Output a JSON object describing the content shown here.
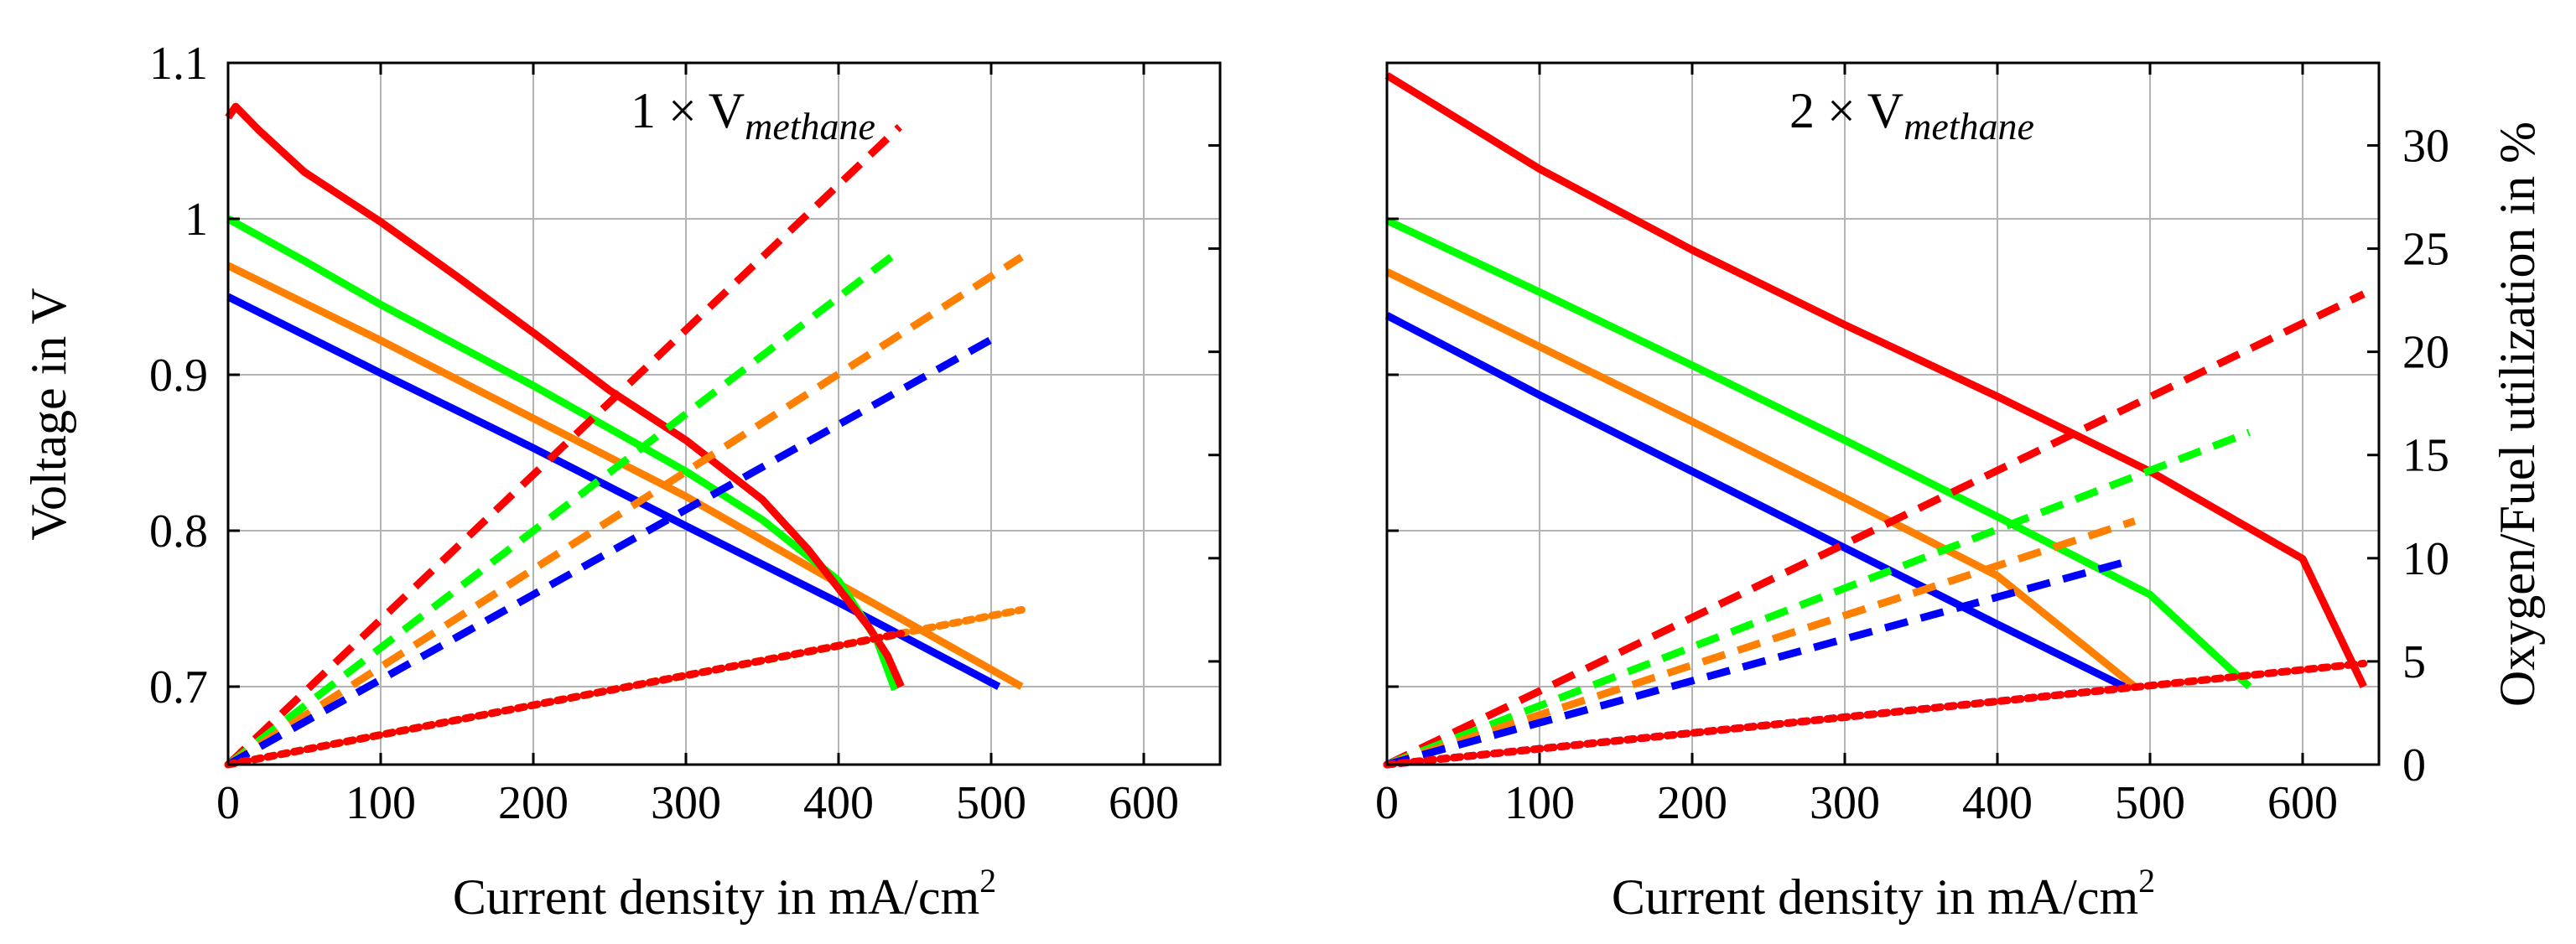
{
  "chart_data": [
    {
      "type": "line",
      "title": {
        "prefix": "1 × ",
        "v": "V",
        "sub": "methane"
      },
      "xlabel": {
        "text": "Current density in mA/cm",
        "sup": "2"
      },
      "ylabel": "Voltage in V",
      "xlim": [
        0,
        650
      ],
      "ylim": [
        0.65,
        1.1
      ],
      "xticks": [
        0,
        100,
        200,
        300,
        400,
        500,
        600
      ],
      "xtick_labels": [
        "0",
        "100",
        "200",
        "300",
        "400",
        "500",
        "600"
      ],
      "yticks": [
        0.7,
        0.8,
        0.9,
        1.0,
        1.1
      ],
      "ytick_labels": [
        "0.7",
        "0.8",
        "0.9",
        "1",
        "1.1"
      ],
      "y2lim": [
        0,
        34
      ],
      "y2ticks": [
        0,
        5,
        10,
        15,
        20,
        25,
        30
      ],
      "grid": true,
      "series": [
        {
          "name": "voltage-blue",
          "axis": "left",
          "style": "solid",
          "color": "#0000ff",
          "x": [
            0,
            100,
            200,
            300,
            400,
            505
          ],
          "y": [
            0.95,
            0.901,
            0.853,
            0.803,
            0.754,
            0.7
          ]
        },
        {
          "name": "voltage-orange",
          "axis": "left",
          "style": "solid",
          "color": "#ff8000",
          "x": [
            0,
            100,
            200,
            300,
            400,
            520
          ],
          "y": [
            0.97,
            0.922,
            0.872,
            0.822,
            0.766,
            0.7
          ]
        },
        {
          "name": "voltage-green",
          "axis": "left",
          "style": "solid",
          "color": "#00ff00",
          "x": [
            0,
            50,
            100,
            200,
            300,
            350,
            400,
            425,
            437
          ],
          "y": [
            1.0,
            0.973,
            0.945,
            0.893,
            0.838,
            0.807,
            0.768,
            0.73,
            0.698
          ]
        },
        {
          "name": "voltage-red",
          "axis": "left",
          "style": "solid",
          "color": "#ff0000",
          "x": [
            0,
            5,
            20,
            50,
            100,
            150,
            200,
            250,
            300,
            350,
            380,
            400,
            420,
            432,
            441
          ],
          "y": [
            1.065,
            1.072,
            1.057,
            1.03,
            0.998,
            0.963,
            0.927,
            0.89,
            0.858,
            0.82,
            0.788,
            0.763,
            0.738,
            0.72,
            0.7
          ]
        },
        {
          "name": "fuel-util-red",
          "axis": "right",
          "style": "dashed",
          "color": "#ff0000",
          "x": [
            0,
            440
          ],
          "y": [
            0,
            30.9
          ]
        },
        {
          "name": "fuel-util-green",
          "axis": "right",
          "style": "dashed",
          "color": "#00ff00",
          "x": [
            0,
            438
          ],
          "y": [
            0,
            24.8
          ]
        },
        {
          "name": "fuel-util-orange",
          "axis": "right",
          "style": "dashed",
          "color": "#ff8000",
          "x": [
            0,
            520
          ],
          "y": [
            0,
            24.6
          ]
        },
        {
          "name": "fuel-util-blue",
          "axis": "right",
          "style": "dashed",
          "color": "#0000ff",
          "x": [
            0,
            505
          ],
          "y": [
            0,
            20.8
          ]
        },
        {
          "name": "oxygen-util-orange",
          "axis": "right",
          "style": "dotted",
          "color": "#ff8000",
          "x": [
            0,
            520
          ],
          "y": [
            0,
            7.5
          ]
        },
        {
          "name": "oxygen-util-green",
          "axis": "right",
          "style": "dotted",
          "color": "#00ff00",
          "x": [
            0,
            438
          ],
          "y": [
            0,
            6.3
          ]
        },
        {
          "name": "oxygen-util-red",
          "axis": "right",
          "style": "dotted",
          "color": "#ff0000",
          "x": [
            0,
            441
          ],
          "y": [
            0,
            6.35
          ]
        }
      ]
    },
    {
      "type": "line",
      "title": {
        "prefix": "2 × ",
        "v": "V",
        "sub": "methane"
      },
      "xlabel": {
        "text": "Current density in mA/cm",
        "sup": "2"
      },
      "y2label": "Oxygen/Fuel utilization in %",
      "xlim": [
        0,
        650
      ],
      "ylim": [
        0.65,
        1.1
      ],
      "xticks": [
        0,
        100,
        200,
        300,
        400,
        500,
        600
      ],
      "xtick_labels": [
        "0",
        "100",
        "200",
        "300",
        "400",
        "500",
        "600"
      ],
      "yticks": [
        0.7,
        0.8,
        0.9,
        1.0,
        1.1
      ],
      "y2lim": [
        0,
        34
      ],
      "y2ticks": [
        0,
        5,
        10,
        15,
        20,
        25,
        30
      ],
      "y2tick_labels": [
        "0",
        "5",
        "10",
        "15",
        "20",
        "25",
        "30"
      ],
      "grid": true,
      "series": [
        {
          "name": "voltage-red",
          "axis": "left",
          "style": "solid",
          "color": "#ff0000",
          "x": [
            0,
            100,
            200,
            300,
            400,
            500,
            600,
            640
          ],
          "y": [
            1.092,
            1.032,
            0.98,
            0.932,
            0.886,
            0.838,
            0.782,
            0.7
          ]
        },
        {
          "name": "voltage-green",
          "axis": "left",
          "style": "solid",
          "color": "#00ff00",
          "x": [
            0,
            100,
            200,
            300,
            400,
            500,
            565
          ],
          "y": [
            0.999,
            0.953,
            0.906,
            0.858,
            0.809,
            0.759,
            0.7
          ]
        },
        {
          "name": "voltage-orange",
          "axis": "left",
          "style": "solid",
          "color": "#ff8000",
          "x": [
            0,
            100,
            200,
            300,
            400,
            490
          ],
          "y": [
            0.966,
            0.918,
            0.87,
            0.821,
            0.771,
            0.7
          ]
        },
        {
          "name": "voltage-blue",
          "axis": "left",
          "style": "solid",
          "color": "#0000ff",
          "x": [
            0,
            100,
            200,
            300,
            400,
            483
          ],
          "y": [
            0.938,
            0.887,
            0.838,
            0.789,
            0.74,
            0.7
          ]
        },
        {
          "name": "fuel-util-red",
          "axis": "right",
          "style": "dashed",
          "color": "#ff0000",
          "x": [
            0,
            640
          ],
          "y": [
            0,
            22.8
          ]
        },
        {
          "name": "fuel-util-green",
          "axis": "right",
          "style": "dashed",
          "color": "#00ff00",
          "x": [
            0,
            565
          ],
          "y": [
            0,
            16.1
          ]
        },
        {
          "name": "fuel-util-orange",
          "axis": "right",
          "style": "dashed",
          "color": "#ff8000",
          "x": [
            0,
            490
          ],
          "y": [
            0,
            11.8
          ]
        },
        {
          "name": "fuel-util-blue",
          "axis": "right",
          "style": "dashed",
          "color": "#0000ff",
          "x": [
            0,
            483
          ],
          "y": [
            0,
            9.8
          ]
        },
        {
          "name": "oxygen-util-blue",
          "axis": "right",
          "style": "dotted",
          "color": "#0000ff",
          "x": [
            0,
            483
          ],
          "y": [
            0,
            3.7
          ]
        },
        {
          "name": "oxygen-util-red",
          "axis": "right",
          "style": "dotted",
          "color": "#ff0000",
          "x": [
            0,
            640
          ],
          "y": [
            0,
            4.9
          ]
        }
      ]
    }
  ]
}
